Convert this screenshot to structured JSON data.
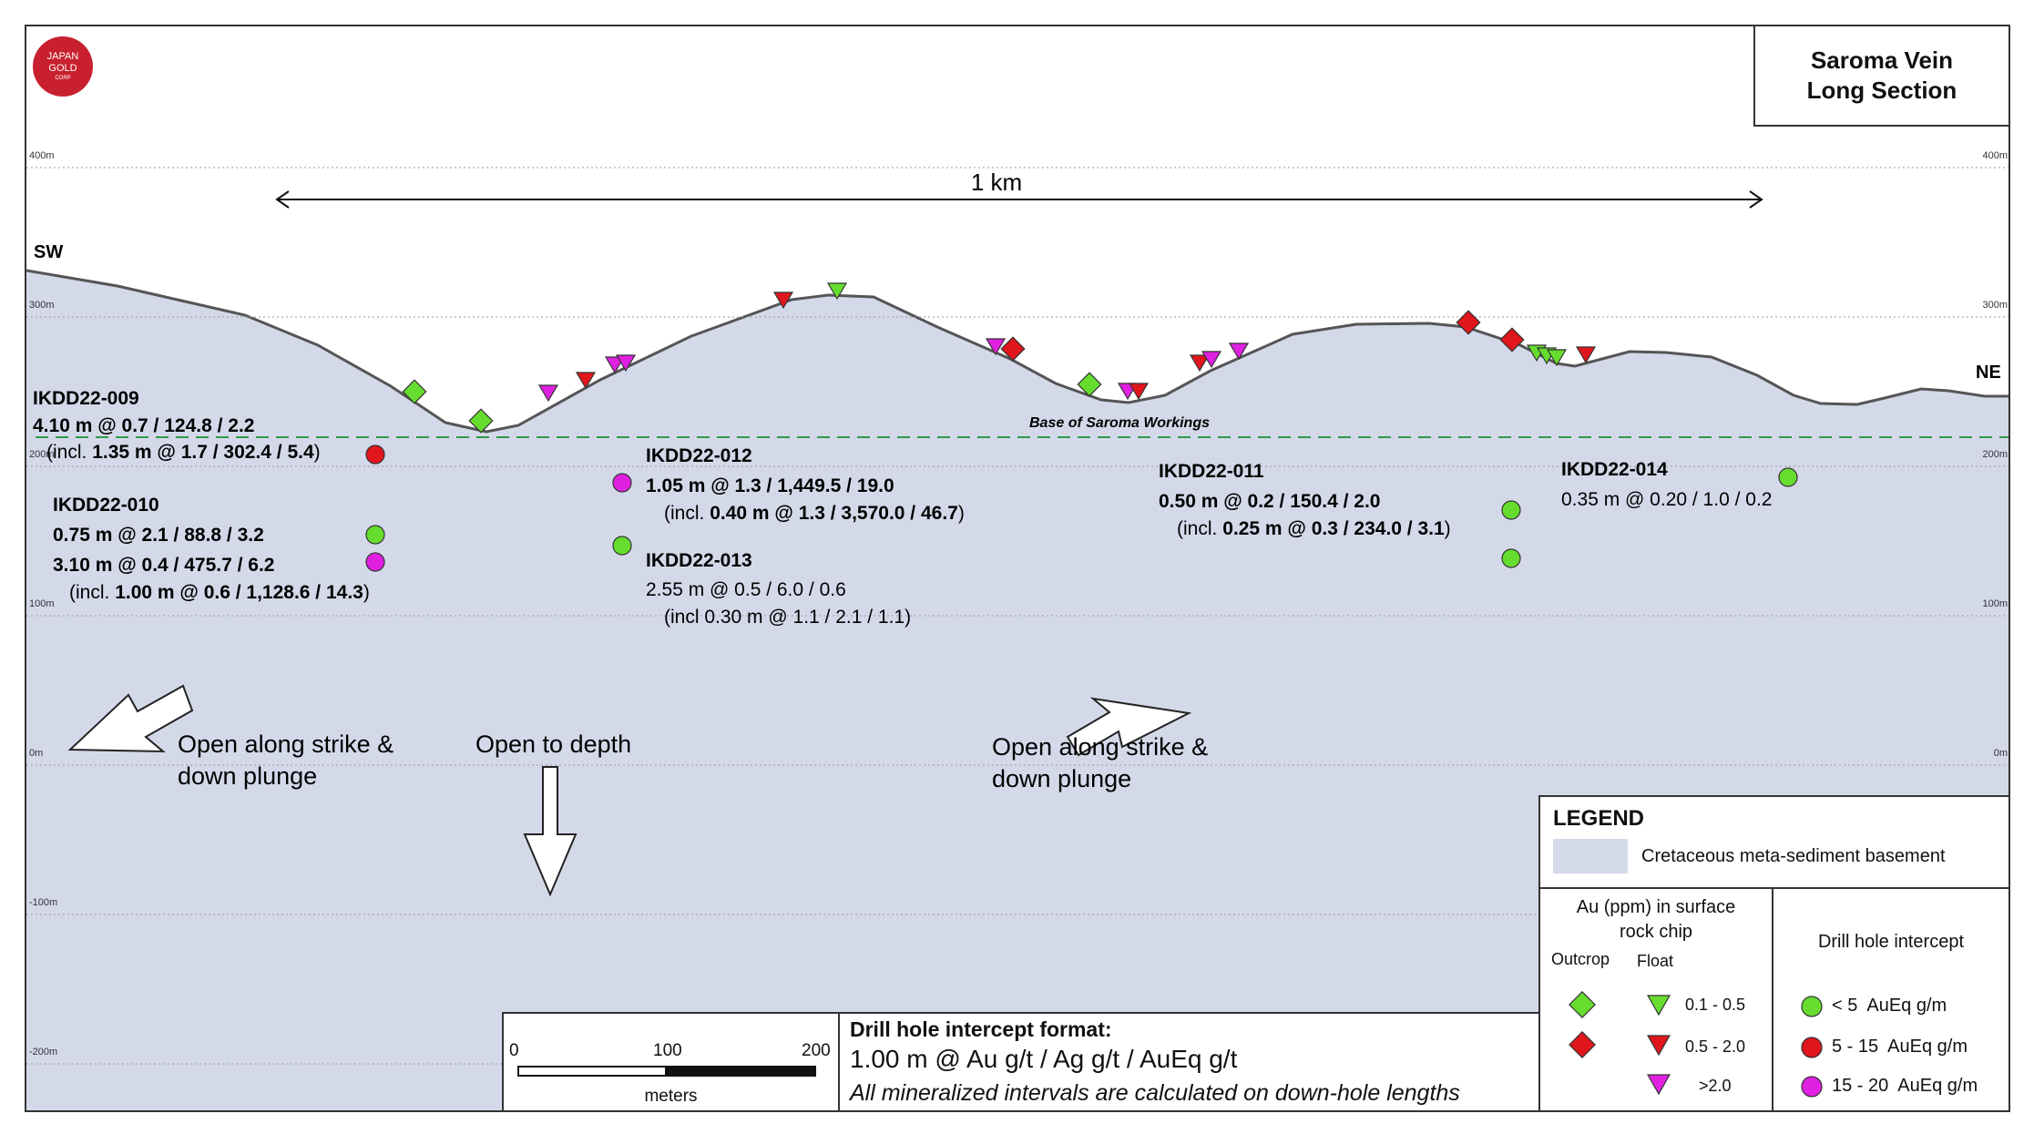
{
  "title": [
    "Saroma Vein",
    "Long Section"
  ],
  "logo": [
    "JAPAN",
    "GOLD",
    "CORP"
  ],
  "orientation": {
    "left": "SW",
    "right": "NE"
  },
  "scale_bar_top": "1 km",
  "elevation_labels": [
    "400m",
    "300m",
    "200m",
    "100m",
    "0m",
    "-100m",
    "-200m"
  ],
  "workings_label": "Base of Saroma Workings",
  "intercepts": {
    "ikdd22_009": {
      "name": "IKDD22-009",
      "line1": "4.10 m @ 0.7 / 124.8 / 2.2",
      "incl_prefix": "(incl. ",
      "incl_bold": "1.35 m @ 1.7 / 302.4 / 5.4",
      "incl_suffix": ")"
    },
    "ikdd22_010": {
      "name": "IKDD22-010",
      "line1": "0.75 m @ 2.1 / 88.8 / 3.2",
      "line2": "3.10 m @ 0.4 / 475.7 / 6.2",
      "incl_prefix": "(incl. ",
      "incl_bold": "1.00 m @ 0.6 / 1,128.6 / 14.3",
      "incl_suffix": ")"
    },
    "ikdd22_012": {
      "name": "IKDD22-012",
      "line1": "1.05 m @ 1.3 / 1,449.5 / 19.0",
      "incl_prefix": "(incl. ",
      "incl_bold": "0.40 m @ 1.3 / 3,570.0 / 46.7",
      "incl_suffix": ")"
    },
    "ikdd22_013": {
      "name": "IKDD22-013",
      "line1": "2.55 m @ 0.5 / 6.0 / 0.6",
      "incl_full": "(incl 0.30 m @ 1.1 / 2.1 / 1.1)"
    },
    "ikdd22_011": {
      "name": "IKDD22-011",
      "line1": "0.50 m @ 0.2 / 150.4 / 2.0",
      "incl_prefix": "(incl. ",
      "incl_bold": "0.25 m @ 0.3 / 234.0 / 3.1",
      "incl_suffix": ")"
    },
    "ikdd22_014": {
      "name": "IKDD22-014",
      "line1": "0.35 m @ 0.20 / 1.0 / 0.2"
    }
  },
  "annotations": {
    "open_sw": [
      "Open along strike &",
      "down plunge"
    ],
    "open_depth": "Open to depth",
    "open_ne": [
      "Open along strike &",
      "down plunge"
    ]
  },
  "scale_bar": {
    "ticks": [
      "0",
      "100",
      "200"
    ],
    "unit": "meters"
  },
  "format_box": {
    "heading": "Drill hole intercept format:",
    "format": "1.00 m @ Au g/t / Ag g/t / AuEq g/t",
    "note": "All mineralized intervals are calculated on down-hole lengths"
  },
  "legend": {
    "title": "LEGEND",
    "basement": "Cretaceous meta-sediment basement",
    "rockchip_title": [
      "Au (ppm) in surface",
      "rock chip"
    ],
    "outcrop": "Outcrop",
    "float": "Float",
    "ranges": [
      "0.1 - 0.5",
      "0.5 - 2.0",
      ">2.0"
    ],
    "drill_title": "Drill hole intercept",
    "drill_classes": [
      "< 5  AuEq g/m",
      "5 - 15  AuEq g/m",
      "15 - 20  AuEq g/m"
    ]
  },
  "colors": {
    "basement": "#d4d9ea",
    "green": "#66dd2e",
    "red": "#e0161c",
    "magenta": "#e020e0",
    "workings_line": "#2e9a46",
    "grid": "#9a9a9a",
    "logo": "#c8202f"
  }
}
